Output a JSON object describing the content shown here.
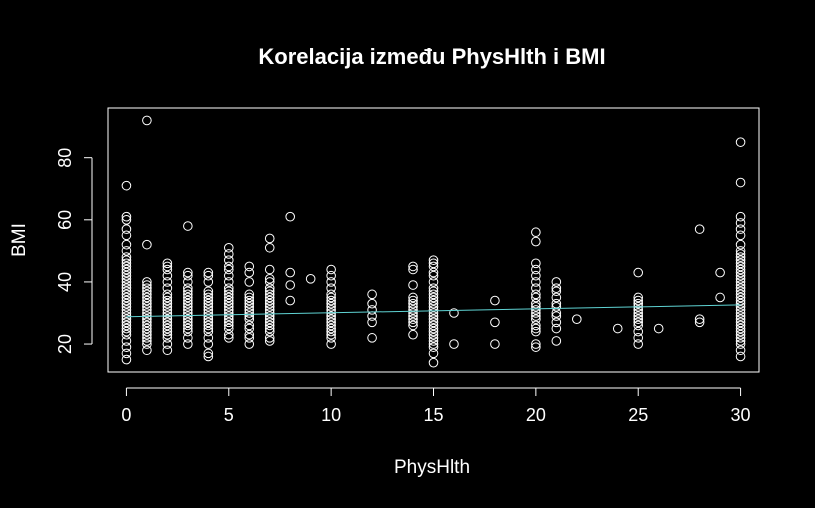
{
  "chart_data": {
    "type": "scatter",
    "title": "Korelacija između PhysHlth i BMI",
    "xlabel": "PhysHlth",
    "ylabel": "BMI",
    "xlim": [
      -0.9,
      30.9
    ],
    "ylim": [
      11,
      96
    ],
    "xticks": [
      0,
      5,
      10,
      15,
      20,
      25,
      30
    ],
    "yticks": [
      20,
      40,
      60,
      80
    ],
    "grid": false,
    "background_color": "#000000",
    "foreground_color": "#ffffff",
    "regression_line": {
      "color": "#5fd3d3",
      "x": [
        0,
        30
      ],
      "y": [
        28.8,
        32.6
      ]
    },
    "points": [
      {
        "x": 0,
        "y": 15
      },
      {
        "x": 0,
        "y": 17
      },
      {
        "x": 0,
        "y": 19
      },
      {
        "x": 0,
        "y": 21
      },
      {
        "x": 0,
        "y": 23
      },
      {
        "x": 0,
        "y": 24
      },
      {
        "x": 0,
        "y": 25
      },
      {
        "x": 0,
        "y": 26
      },
      {
        "x": 0,
        "y": 27
      },
      {
        "x": 0,
        "y": 28
      },
      {
        "x": 0,
        "y": 29
      },
      {
        "x": 0,
        "y": 30
      },
      {
        "x": 0,
        "y": 31
      },
      {
        "x": 0,
        "y": 32
      },
      {
        "x": 0,
        "y": 33
      },
      {
        "x": 0,
        "y": 34
      },
      {
        "x": 0,
        "y": 35
      },
      {
        "x": 0,
        "y": 36
      },
      {
        "x": 0,
        "y": 37
      },
      {
        "x": 0,
        "y": 38
      },
      {
        "x": 0,
        "y": 39
      },
      {
        "x": 0,
        "y": 40
      },
      {
        "x": 0,
        "y": 41
      },
      {
        "x": 0,
        "y": 42
      },
      {
        "x": 0,
        "y": 43
      },
      {
        "x": 0,
        "y": 44
      },
      {
        "x": 0,
        "y": 45
      },
      {
        "x": 0,
        "y": 46
      },
      {
        "x": 0,
        "y": 47
      },
      {
        "x": 0,
        "y": 48
      },
      {
        "x": 0,
        "y": 50
      },
      {
        "x": 0,
        "y": 52
      },
      {
        "x": 0,
        "y": 55
      },
      {
        "x": 0,
        "y": 57
      },
      {
        "x": 0,
        "y": 60
      },
      {
        "x": 0,
        "y": 61
      },
      {
        "x": 0,
        "y": 71
      },
      {
        "x": 1,
        "y": 18
      },
      {
        "x": 1,
        "y": 20
      },
      {
        "x": 1,
        "y": 21
      },
      {
        "x": 1,
        "y": 22
      },
      {
        "x": 1,
        "y": 23
      },
      {
        "x": 1,
        "y": 24
      },
      {
        "x": 1,
        "y": 25
      },
      {
        "x": 1,
        "y": 26
      },
      {
        "x": 1,
        "y": 27
      },
      {
        "x": 1,
        "y": 28
      },
      {
        "x": 1,
        "y": 29
      },
      {
        "x": 1,
        "y": 30
      },
      {
        "x": 1,
        "y": 31
      },
      {
        "x": 1,
        "y": 32
      },
      {
        "x": 1,
        "y": 33
      },
      {
        "x": 1,
        "y": 34
      },
      {
        "x": 1,
        "y": 35
      },
      {
        "x": 1,
        "y": 36
      },
      {
        "x": 1,
        "y": 37
      },
      {
        "x": 1,
        "y": 38
      },
      {
        "x": 1,
        "y": 39
      },
      {
        "x": 1,
        "y": 40
      },
      {
        "x": 1,
        "y": 52
      },
      {
        "x": 1,
        "y": 92
      },
      {
        "x": 2,
        "y": 18
      },
      {
        "x": 2,
        "y": 20
      },
      {
        "x": 2,
        "y": 22
      },
      {
        "x": 2,
        "y": 23
      },
      {
        "x": 2,
        "y": 24
      },
      {
        "x": 2,
        "y": 25
      },
      {
        "x": 2,
        "y": 26
      },
      {
        "x": 2,
        "y": 27
      },
      {
        "x": 2,
        "y": 28
      },
      {
        "x": 2,
        "y": 29
      },
      {
        "x": 2,
        "y": 30
      },
      {
        "x": 2,
        "y": 31
      },
      {
        "x": 2,
        "y": 32
      },
      {
        "x": 2,
        "y": 33
      },
      {
        "x": 2,
        "y": 34
      },
      {
        "x": 2,
        "y": 35
      },
      {
        "x": 2,
        "y": 36
      },
      {
        "x": 2,
        "y": 38
      },
      {
        "x": 2,
        "y": 40
      },
      {
        "x": 2,
        "y": 42
      },
      {
        "x": 2,
        "y": 44
      },
      {
        "x": 2,
        "y": 45
      },
      {
        "x": 2,
        "y": 46
      },
      {
        "x": 3,
        "y": 20
      },
      {
        "x": 3,
        "y": 22
      },
      {
        "x": 3,
        "y": 24
      },
      {
        "x": 3,
        "y": 25
      },
      {
        "x": 3,
        "y": 26
      },
      {
        "x": 3,
        "y": 27
      },
      {
        "x": 3,
        "y": 28
      },
      {
        "x": 3,
        "y": 29
      },
      {
        "x": 3,
        "y": 30
      },
      {
        "x": 3,
        "y": 31
      },
      {
        "x": 3,
        "y": 32
      },
      {
        "x": 3,
        "y": 33
      },
      {
        "x": 3,
        "y": 34
      },
      {
        "x": 3,
        "y": 35
      },
      {
        "x": 3,
        "y": 36
      },
      {
        "x": 3,
        "y": 37
      },
      {
        "x": 3,
        "y": 38
      },
      {
        "x": 3,
        "y": 40
      },
      {
        "x": 3,
        "y": 42
      },
      {
        "x": 3,
        "y": 43
      },
      {
        "x": 3,
        "y": 58
      },
      {
        "x": 4,
        "y": 16
      },
      {
        "x": 4,
        "y": 17
      },
      {
        "x": 4,
        "y": 20
      },
      {
        "x": 4,
        "y": 22
      },
      {
        "x": 4,
        "y": 24
      },
      {
        "x": 4,
        "y": 25
      },
      {
        "x": 4,
        "y": 26
      },
      {
        "x": 4,
        "y": 27
      },
      {
        "x": 4,
        "y": 28
      },
      {
        "x": 4,
        "y": 29
      },
      {
        "x": 4,
        "y": 30
      },
      {
        "x": 4,
        "y": 31
      },
      {
        "x": 4,
        "y": 32
      },
      {
        "x": 4,
        "y": 33
      },
      {
        "x": 4,
        "y": 34
      },
      {
        "x": 4,
        "y": 35
      },
      {
        "x": 4,
        "y": 36
      },
      {
        "x": 4,
        "y": 37
      },
      {
        "x": 4,
        "y": 40
      },
      {
        "x": 4,
        "y": 42
      },
      {
        "x": 4,
        "y": 43
      },
      {
        "x": 5,
        "y": 22
      },
      {
        "x": 5,
        "y": 23
      },
      {
        "x": 5,
        "y": 25
      },
      {
        "x": 5,
        "y": 26
      },
      {
        "x": 5,
        "y": 27
      },
      {
        "x": 5,
        "y": 28
      },
      {
        "x": 5,
        "y": 29
      },
      {
        "x": 5,
        "y": 30
      },
      {
        "x": 5,
        "y": 31
      },
      {
        "x": 5,
        "y": 32
      },
      {
        "x": 5,
        "y": 33
      },
      {
        "x": 5,
        "y": 34
      },
      {
        "x": 5,
        "y": 35
      },
      {
        "x": 5,
        "y": 36
      },
      {
        "x": 5,
        "y": 37
      },
      {
        "x": 5,
        "y": 38
      },
      {
        "x": 5,
        "y": 40
      },
      {
        "x": 5,
        "y": 42
      },
      {
        "x": 5,
        "y": 44
      },
      {
        "x": 5,
        "y": 45
      },
      {
        "x": 5,
        "y": 47
      },
      {
        "x": 5,
        "y": 49
      },
      {
        "x": 5,
        "y": 51
      },
      {
        "x": 6,
        "y": 20
      },
      {
        "x": 6,
        "y": 22
      },
      {
        "x": 6,
        "y": 23
      },
      {
        "x": 6,
        "y": 25
      },
      {
        "x": 6,
        "y": 26
      },
      {
        "x": 6,
        "y": 28
      },
      {
        "x": 6,
        "y": 29
      },
      {
        "x": 6,
        "y": 30
      },
      {
        "x": 6,
        "y": 31
      },
      {
        "x": 6,
        "y": 32
      },
      {
        "x": 6,
        "y": 33
      },
      {
        "x": 6,
        "y": 34
      },
      {
        "x": 6,
        "y": 35
      },
      {
        "x": 6,
        "y": 36
      },
      {
        "x": 6,
        "y": 40
      },
      {
        "x": 6,
        "y": 43
      },
      {
        "x": 6,
        "y": 45
      },
      {
        "x": 7,
        "y": 21
      },
      {
        "x": 7,
        "y": 22
      },
      {
        "x": 7,
        "y": 24
      },
      {
        "x": 7,
        "y": 25
      },
      {
        "x": 7,
        "y": 26
      },
      {
        "x": 7,
        "y": 27
      },
      {
        "x": 7,
        "y": 28
      },
      {
        "x": 7,
        "y": 29
      },
      {
        "x": 7,
        "y": 30
      },
      {
        "x": 7,
        "y": 31
      },
      {
        "x": 7,
        "y": 32
      },
      {
        "x": 7,
        "y": 33
      },
      {
        "x": 7,
        "y": 34
      },
      {
        "x": 7,
        "y": 35
      },
      {
        "x": 7,
        "y": 36
      },
      {
        "x": 7,
        "y": 37
      },
      {
        "x": 7,
        "y": 38
      },
      {
        "x": 7,
        "y": 40
      },
      {
        "x": 7,
        "y": 41
      },
      {
        "x": 7,
        "y": 44
      },
      {
        "x": 7,
        "y": 51
      },
      {
        "x": 7,
        "y": 54
      },
      {
        "x": 8,
        "y": 34
      },
      {
        "x": 8,
        "y": 39
      },
      {
        "x": 8,
        "y": 43
      },
      {
        "x": 8,
        "y": 61
      },
      {
        "x": 9,
        "y": 41
      },
      {
        "x": 10,
        "y": 20
      },
      {
        "x": 10,
        "y": 22
      },
      {
        "x": 10,
        "y": 23
      },
      {
        "x": 10,
        "y": 24
      },
      {
        "x": 10,
        "y": 25
      },
      {
        "x": 10,
        "y": 26
      },
      {
        "x": 10,
        "y": 27
      },
      {
        "x": 10,
        "y": 28
      },
      {
        "x": 10,
        "y": 29
      },
      {
        "x": 10,
        "y": 30
      },
      {
        "x": 10,
        "y": 31
      },
      {
        "x": 10,
        "y": 32
      },
      {
        "x": 10,
        "y": 33
      },
      {
        "x": 10,
        "y": 34
      },
      {
        "x": 10,
        "y": 35
      },
      {
        "x": 10,
        "y": 36
      },
      {
        "x": 10,
        "y": 38
      },
      {
        "x": 10,
        "y": 40
      },
      {
        "x": 10,
        "y": 42
      },
      {
        "x": 10,
        "y": 44
      },
      {
        "x": 12,
        "y": 22
      },
      {
        "x": 12,
        "y": 27
      },
      {
        "x": 12,
        "y": 29
      },
      {
        "x": 12,
        "y": 31
      },
      {
        "x": 12,
        "y": 33
      },
      {
        "x": 12,
        "y": 36
      },
      {
        "x": 14,
        "y": 23
      },
      {
        "x": 14,
        "y": 26
      },
      {
        "x": 14,
        "y": 27
      },
      {
        "x": 14,
        "y": 28
      },
      {
        "x": 14,
        "y": 29
      },
      {
        "x": 14,
        "y": 30
      },
      {
        "x": 14,
        "y": 31
      },
      {
        "x": 14,
        "y": 32
      },
      {
        "x": 14,
        "y": 33
      },
      {
        "x": 14,
        "y": 34
      },
      {
        "x": 14,
        "y": 35
      },
      {
        "x": 14,
        "y": 39
      },
      {
        "x": 14,
        "y": 44
      },
      {
        "x": 14,
        "y": 45
      },
      {
        "x": 15,
        "y": 14
      },
      {
        "x": 15,
        "y": 17
      },
      {
        "x": 15,
        "y": 19
      },
      {
        "x": 15,
        "y": 20
      },
      {
        "x": 15,
        "y": 21
      },
      {
        "x": 15,
        "y": 22
      },
      {
        "x": 15,
        "y": 23
      },
      {
        "x": 15,
        "y": 24
      },
      {
        "x": 15,
        "y": 25
      },
      {
        "x": 15,
        "y": 26
      },
      {
        "x": 15,
        "y": 27
      },
      {
        "x": 15,
        "y": 28
      },
      {
        "x": 15,
        "y": 29
      },
      {
        "x": 15,
        "y": 30
      },
      {
        "x": 15,
        "y": 31
      },
      {
        "x": 15,
        "y": 32
      },
      {
        "x": 15,
        "y": 33
      },
      {
        "x": 15,
        "y": 34
      },
      {
        "x": 15,
        "y": 35
      },
      {
        "x": 15,
        "y": 36
      },
      {
        "x": 15,
        "y": 37
      },
      {
        "x": 15,
        "y": 38
      },
      {
        "x": 15,
        "y": 40
      },
      {
        "x": 15,
        "y": 42
      },
      {
        "x": 15,
        "y": 43
      },
      {
        "x": 15,
        "y": 45
      },
      {
        "x": 15,
        "y": 46
      },
      {
        "x": 15,
        "y": 47
      },
      {
        "x": 16,
        "y": 20
      },
      {
        "x": 16,
        "y": 30
      },
      {
        "x": 18,
        "y": 20
      },
      {
        "x": 18,
        "y": 27
      },
      {
        "x": 18,
        "y": 34
      },
      {
        "x": 20,
        "y": 19
      },
      {
        "x": 20,
        "y": 20
      },
      {
        "x": 20,
        "y": 24
      },
      {
        "x": 20,
        "y": 25
      },
      {
        "x": 20,
        "y": 26
      },
      {
        "x": 20,
        "y": 28
      },
      {
        "x": 20,
        "y": 29
      },
      {
        "x": 20,
        "y": 30
      },
      {
        "x": 20,
        "y": 31
      },
      {
        "x": 20,
        "y": 32
      },
      {
        "x": 20,
        "y": 33
      },
      {
        "x": 20,
        "y": 35
      },
      {
        "x": 20,
        "y": 36
      },
      {
        "x": 20,
        "y": 38
      },
      {
        "x": 20,
        "y": 40
      },
      {
        "x": 20,
        "y": 42
      },
      {
        "x": 20,
        "y": 44
      },
      {
        "x": 20,
        "y": 46
      },
      {
        "x": 20,
        "y": 53
      },
      {
        "x": 20,
        "y": 56
      },
      {
        "x": 21,
        "y": 21
      },
      {
        "x": 21,
        "y": 25
      },
      {
        "x": 21,
        "y": 27
      },
      {
        "x": 21,
        "y": 29
      },
      {
        "x": 21,
        "y": 30
      },
      {
        "x": 21,
        "y": 32
      },
      {
        "x": 21,
        "y": 33
      },
      {
        "x": 21,
        "y": 35
      },
      {
        "x": 21,
        "y": 37
      },
      {
        "x": 21,
        "y": 38
      },
      {
        "x": 21,
        "y": 40
      },
      {
        "x": 22,
        "y": 28
      },
      {
        "x": 24,
        "y": 25
      },
      {
        "x": 25,
        "y": 20
      },
      {
        "x": 25,
        "y": 22
      },
      {
        "x": 25,
        "y": 24
      },
      {
        "x": 25,
        "y": 26
      },
      {
        "x": 25,
        "y": 27
      },
      {
        "x": 25,
        "y": 28
      },
      {
        "x": 25,
        "y": 29
      },
      {
        "x": 25,
        "y": 30
      },
      {
        "x": 25,
        "y": 31
      },
      {
        "x": 25,
        "y": 32
      },
      {
        "x": 25,
        "y": 33
      },
      {
        "x": 25,
        "y": 34
      },
      {
        "x": 25,
        "y": 35
      },
      {
        "x": 25,
        "y": 43
      },
      {
        "x": 26,
        "y": 25
      },
      {
        "x": 28,
        "y": 27
      },
      {
        "x": 28,
        "y": 28
      },
      {
        "x": 28,
        "y": 57
      },
      {
        "x": 29,
        "y": 35
      },
      {
        "x": 29,
        "y": 43
      },
      {
        "x": 30,
        "y": 16
      },
      {
        "x": 30,
        "y": 18
      },
      {
        "x": 30,
        "y": 20
      },
      {
        "x": 30,
        "y": 21
      },
      {
        "x": 30,
        "y": 22
      },
      {
        "x": 30,
        "y": 23
      },
      {
        "x": 30,
        "y": 24
      },
      {
        "x": 30,
        "y": 25
      },
      {
        "x": 30,
        "y": 26
      },
      {
        "x": 30,
        "y": 27
      },
      {
        "x": 30,
        "y": 28
      },
      {
        "x": 30,
        "y": 29
      },
      {
        "x": 30,
        "y": 30
      },
      {
        "x": 30,
        "y": 31
      },
      {
        "x": 30,
        "y": 32
      },
      {
        "x": 30,
        "y": 33
      },
      {
        "x": 30,
        "y": 34
      },
      {
        "x": 30,
        "y": 35
      },
      {
        "x": 30,
        "y": 36
      },
      {
        "x": 30,
        "y": 37
      },
      {
        "x": 30,
        "y": 38
      },
      {
        "x": 30,
        "y": 39
      },
      {
        "x": 30,
        "y": 40
      },
      {
        "x": 30,
        "y": 41
      },
      {
        "x": 30,
        "y": 42
      },
      {
        "x": 30,
        "y": 43
      },
      {
        "x": 30,
        "y": 44
      },
      {
        "x": 30,
        "y": 45
      },
      {
        "x": 30,
        "y": 46
      },
      {
        "x": 30,
        "y": 47
      },
      {
        "x": 30,
        "y": 48
      },
      {
        "x": 30,
        "y": 49
      },
      {
        "x": 30,
        "y": 50
      },
      {
        "x": 30,
        "y": 52
      },
      {
        "x": 30,
        "y": 55
      },
      {
        "x": 30,
        "y": 57
      },
      {
        "x": 30,
        "y": 59
      },
      {
        "x": 30,
        "y": 61
      },
      {
        "x": 30,
        "y": 72
      },
      {
        "x": 30,
        "y": 85
      }
    ]
  }
}
